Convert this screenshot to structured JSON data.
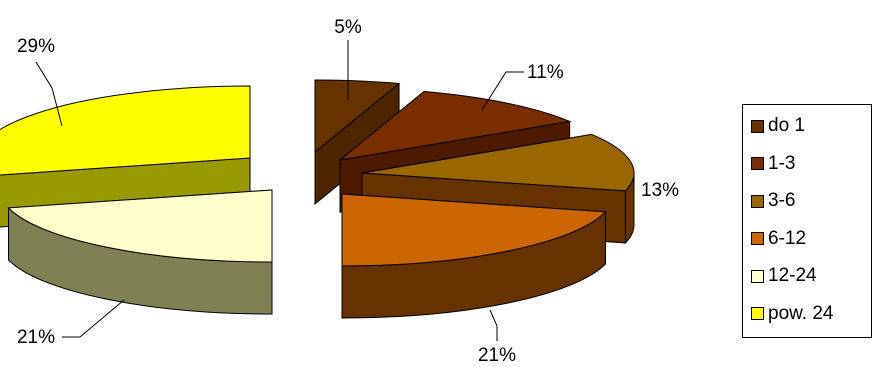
{
  "chart_data": {
    "type": "pie",
    "style": "3d-exploded",
    "categories": [
      "do 1",
      "1-3",
      "3-6",
      "6-12",
      "12-24",
      "pow. 24"
    ],
    "values": [
      5,
      11,
      13,
      21,
      21,
      29
    ],
    "labels": [
      "5%",
      "11%",
      "13%",
      "21%",
      "21%",
      "29%"
    ],
    "colors": [
      "#663300",
      "#7A2E00",
      "#996600",
      "#CC6600",
      "#FFFFCC",
      "#FFFF00"
    ],
    "unit": "%",
    "legend": "right"
  }
}
